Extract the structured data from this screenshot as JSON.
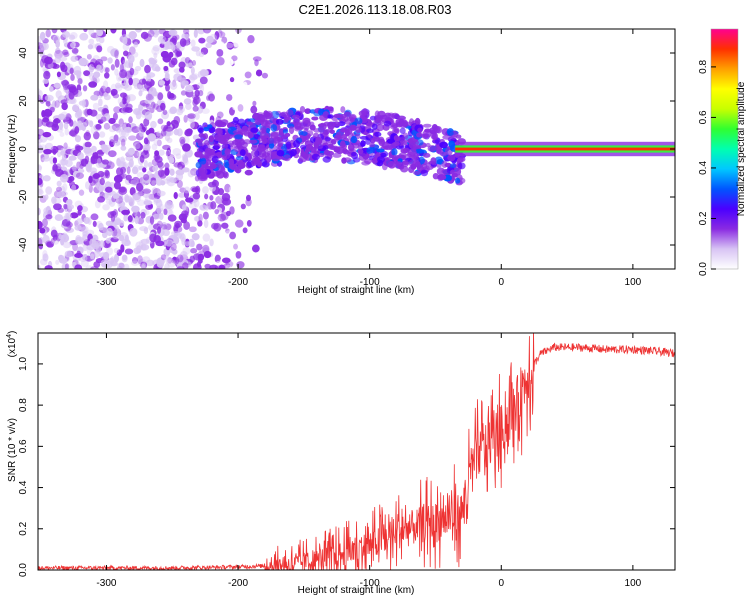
{
  "title": "C2E1.2026.113.18.08.R03",
  "chart_data": [
    {
      "type": "heatmap",
      "xlabel": "Height of straight line (km)",
      "ylabel": "Frequency (Hz)",
      "xlim": [
        -352,
        132
      ],
      "ylim": [
        -50,
        50
      ],
      "xticks": [
        -300,
        -200,
        -100,
        0,
        100
      ],
      "yticks": [
        -40,
        -20,
        0,
        20,
        40
      ],
      "grid": false,
      "colorbar": {
        "label": "Normalized spectral amplitude",
        "range": [
          0,
          0.95
        ],
        "ticks": [
          0.0,
          0.2,
          0.4,
          0.6,
          0.8
        ],
        "colors": [
          "#ffffff",
          "#d8c4f4",
          "#8a2be2",
          "#4b00ff",
          "#0055ff",
          "#00c8ff",
          "#00ffb0",
          "#30ff30",
          "#c8ff00",
          "#ffff00",
          "#ffa000",
          "#ff3000",
          "#ff0090"
        ]
      },
      "description_regions": [
        {
          "x_range": [
            -352,
            -230
          ],
          "f_range": [
            -50,
            50
          ],
          "amplitude": 0.05
        },
        {
          "x_range": [
            -230,
            -30
          ],
          "f_range": [
            -25,
            20
          ],
          "amplitude": 0.2
        },
        {
          "x_range": [
            -30,
            132
          ],
          "f_range": [
            -2,
            2
          ],
          "amplitude": 0.9
        }
      ]
    },
    {
      "type": "line",
      "xlabel": "Height of straight line (km)",
      "ylabel": "SNR (10 * v/v)",
      "yscale_label": "(x10",
      "yscale_exp": "4",
      "yscale_suffix": ")",
      "xlim": [
        -352,
        132
      ],
      "ylim": [
        0,
        1.15
      ],
      "xticks": [
        -300,
        -200,
        -100,
        0,
        100
      ],
      "yticks": [
        0.0,
        0.2,
        0.4,
        0.6,
        0.8,
        1.0
      ],
      "color": "#ee3333",
      "series": [
        {
          "name": "SNR",
          "x": [
            -352,
            -250,
            -200,
            -180,
            -160,
            -140,
            -120,
            -100,
            -80,
            -60,
            -40,
            -30,
            -20,
            -10,
            0,
            10,
            20,
            30,
            40,
            60,
            80,
            100,
            120,
            132
          ],
          "values": [
            0.01,
            0.01,
            0.015,
            0.02,
            0.03,
            0.05,
            0.08,
            0.12,
            0.18,
            0.22,
            0.25,
            0.28,
            0.55,
            0.62,
            0.68,
            0.78,
            0.95,
            1.05,
            1.08,
            1.08,
            1.07,
            1.07,
            1.06,
            1.05
          ]
        }
      ]
    }
  ]
}
